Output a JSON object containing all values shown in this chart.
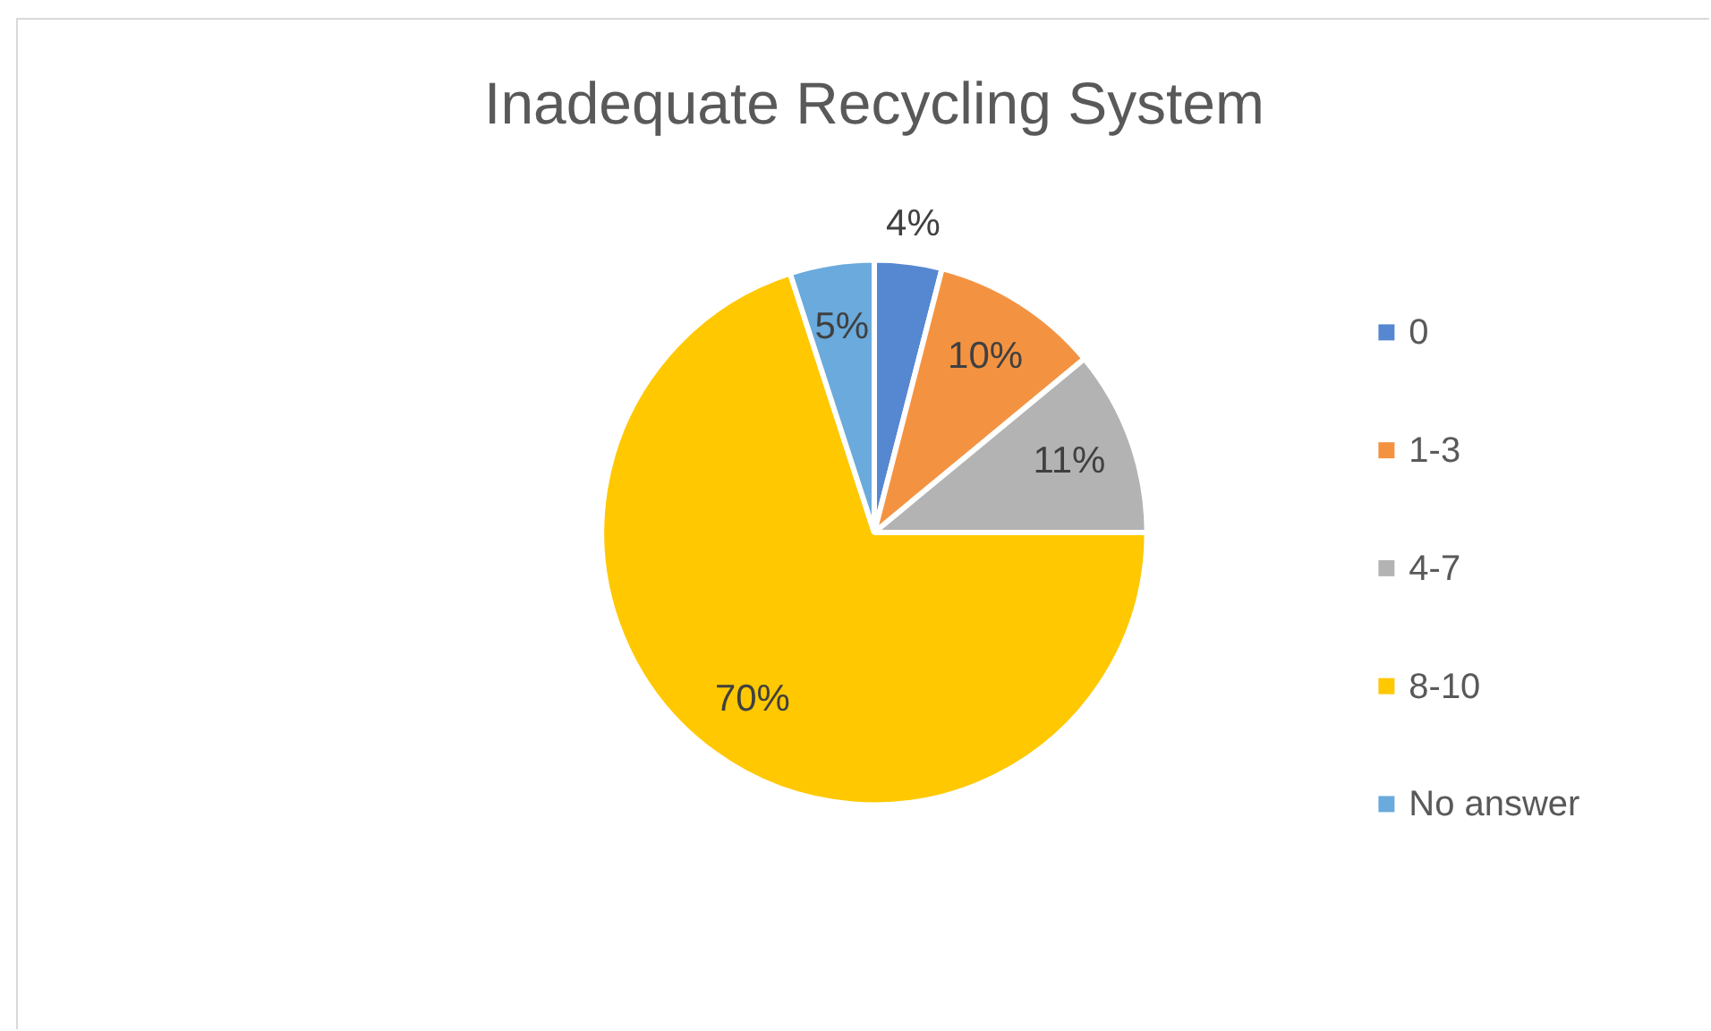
{
  "chart_data": {
    "type": "pie",
    "title": "Inadequate Recycling System",
    "categories": [
      "0",
      "1-3",
      "4-7",
      "8-10",
      "No answer"
    ],
    "values": [
      4,
      10,
      11,
      70,
      5
    ],
    "colors": [
      "#5687d1",
      "#f39342",
      "#b3b3b3",
      "#ffc800",
      "#6aaadc"
    ],
    "value_labels": [
      "4%",
      "10%",
      "11%",
      "70%",
      "5%"
    ],
    "legend": "right"
  }
}
